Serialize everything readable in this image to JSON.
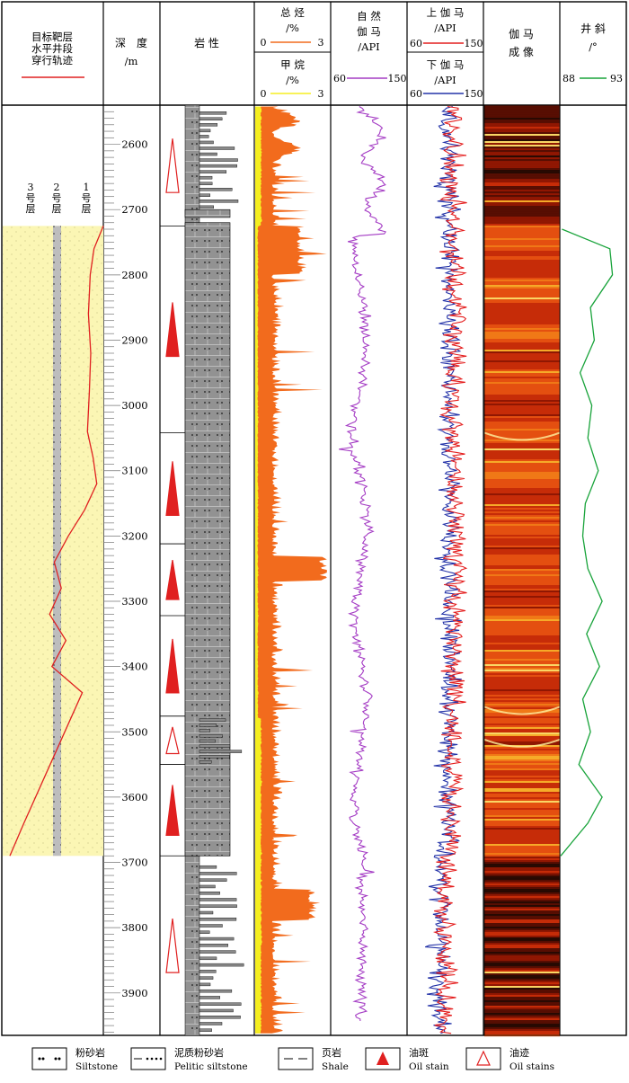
{
  "header": {
    "track_title": [
      "目标靶层",
      "水平井段",
      "穿行轨迹"
    ],
    "depth_title": [
      "深　度",
      "/m"
    ],
    "lith_title": "岩  性",
    "tg_title": [
      "总 烃",
      "/%"
    ],
    "tg_scale": [
      "0",
      "3"
    ],
    "ch4_title": [
      "甲 烷",
      "/%"
    ],
    "ch4_scale": [
      "0",
      "3"
    ],
    "sgr_title": [
      "自  然",
      "伽  马",
      "/API"
    ],
    "sgr_scale": [
      "60",
      "150"
    ],
    "upgr_title": [
      "上 伽 马",
      "/API"
    ],
    "upgr_scale": [
      "60",
      "150"
    ],
    "lowgr_title": [
      "下 伽 马",
      "/API"
    ],
    "lowgr_scale": [
      "60",
      "150"
    ],
    "image_title": [
      "伽  马",
      "成  像"
    ],
    "incl_title": [
      "井  斜",
      "/°"
    ],
    "incl_scale": [
      "88",
      "93"
    ]
  },
  "layers": [
    {
      "label": "3 号 层"
    },
    {
      "label": "2 号 层"
    },
    {
      "label": "1 号 层"
    }
  ],
  "legend": [
    {
      "cn": "粉砂岩",
      "en": "Siltstone",
      "icon": "siltstone"
    },
    {
      "cn": "泥质粉砂岩",
      "en": "Pelitic siltstone",
      "icon": "pelitic-siltstone"
    },
    {
      "cn": "页岩",
      "en": "Shale",
      "icon": "shale"
    },
    {
      "cn": "油斑",
      "en": "Oil stain",
      "icon": "filled-triangle"
    },
    {
      "cn": "油迹",
      "en": "Oil stains",
      "icon": "open-triangle"
    }
  ],
  "colors": {
    "total_hydrocarbon": "#f26b1d",
    "methane": "#f5ee20",
    "natural_gamma": "#a43bc4",
    "upper_gamma": "#e41e1e",
    "lower_gamma": "#2433a8",
    "inclination": "#18a33a",
    "trajectory": "#e02020",
    "target_zone": "#fbf6b4",
    "lithology": "#8e8e8e"
  },
  "chart_data": {
    "type": "well-log",
    "depth_axis": {
      "label": "深度 /m",
      "range": [
        2540,
        3965
      ],
      "ticks": [
        2600,
        2700,
        2800,
        2900,
        3000,
        3100,
        3200,
        3300,
        3400,
        3500,
        3600,
        3700,
        3800,
        3900
      ]
    },
    "oil_show_intervals": [
      {
        "top": 2540,
        "bottom": 2725,
        "type": "油迹"
      },
      {
        "top": 2725,
        "bottom": 3042,
        "type": "油斑"
      },
      {
        "top": 3042,
        "bottom": 3212,
        "type": "油斑"
      },
      {
        "top": 3212,
        "bottom": 3322,
        "type": "油斑"
      },
      {
        "top": 3322,
        "bottom": 3476,
        "type": "油斑"
      },
      {
        "top": 3476,
        "bottom": 3550,
        "type": "油迹"
      },
      {
        "top": 3550,
        "bottom": 3690,
        "type": "油斑"
      },
      {
        "top": 3690,
        "bottom": 3965,
        "type": "油迹"
      }
    ],
    "target_zone_interval": [
      2725,
      3690
    ],
    "trajectory_depths": [
      2725,
      2760,
      2800,
      2860,
      2920,
      2980,
      3040,
      3080,
      3120,
      3160,
      3200,
      3240,
      3280,
      3320,
      3360,
      3400,
      3440,
      3480,
      3520,
      3560,
      3600,
      3640,
      3690
    ],
    "trajectory_position": [
      1.0,
      0.8,
      0.72,
      0.68,
      0.73,
      0.7,
      0.66,
      0.78,
      0.86,
      0.6,
      0.25,
      -0.05,
      0.1,
      -0.15,
      0.2,
      -0.1,
      0.55,
      0.3,
      0.05,
      -0.2,
      -0.45,
      -0.7,
      -1.0
    ],
    "inclination_depths": [
      2730,
      2760,
      2800,
      2850,
      2900,
      2950,
      3000,
      3050,
      3100,
      3150,
      3200,
      3250,
      3300,
      3350,
      3400,
      3450,
      3500,
      3550,
      3600,
      3640,
      3690
    ],
    "inclination_values": [
      88.1,
      91.8,
      92.0,
      90.3,
      90.6,
      89.5,
      90.4,
      90.1,
      90.9,
      89.9,
      89.7,
      90.1,
      91.2,
      90.0,
      91.0,
      89.7,
      90.3,
      89.4,
      91.2,
      90.1,
      88.0
    ]
  }
}
